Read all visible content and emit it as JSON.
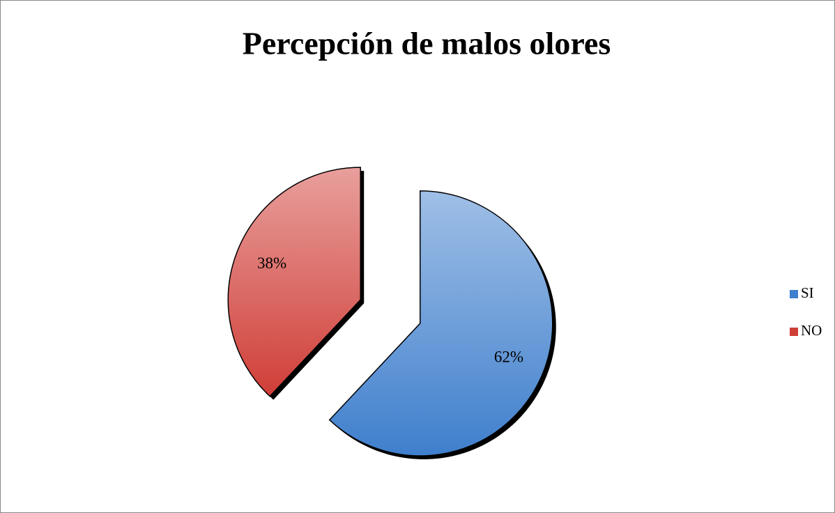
{
  "chart_data": {
    "type": "pie",
    "title": "Percepción de malos olores",
    "categories": [
      "SI",
      "NO"
    ],
    "values": [
      62,
      38
    ],
    "value_labels": [
      "62%",
      "38%"
    ],
    "colors": [
      "#3f7fcd",
      "#d03e38"
    ],
    "legend": "right"
  }
}
